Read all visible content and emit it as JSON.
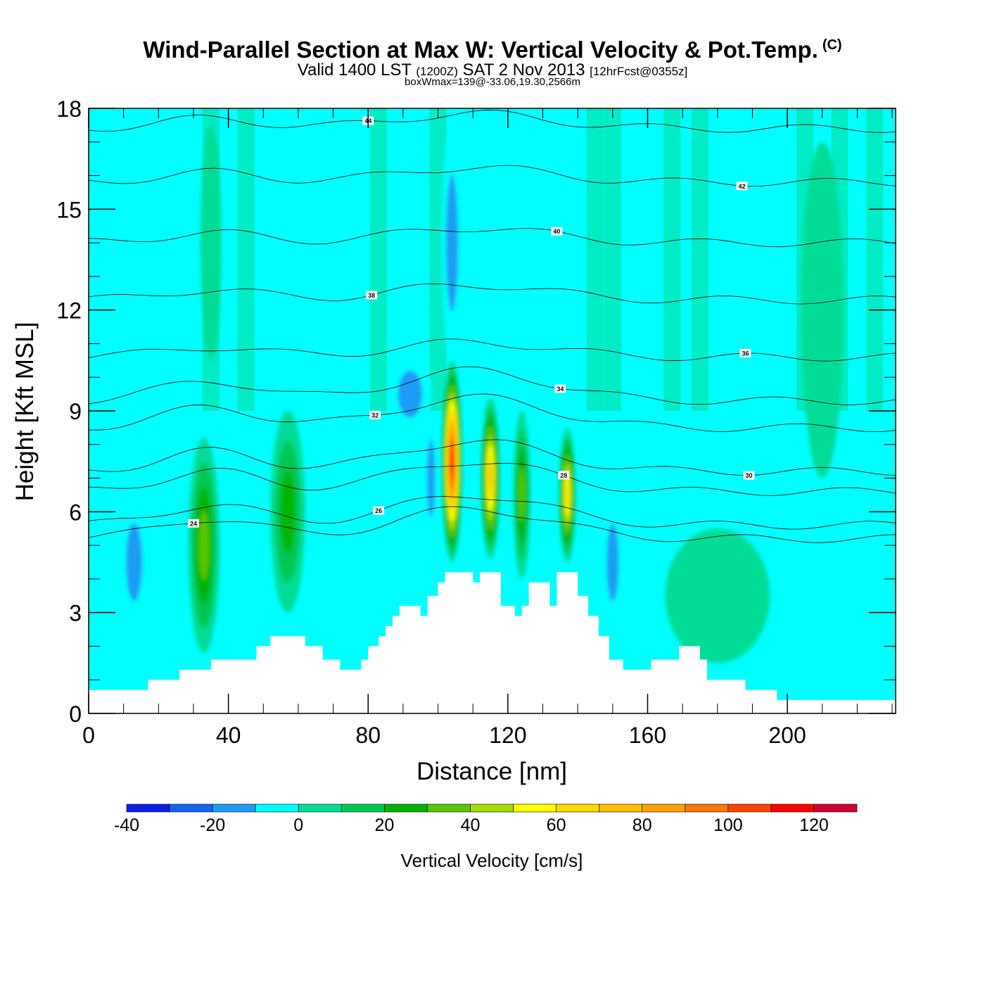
{
  "header": {
    "title": "Wind-Parallel Section at Max W: Vertical Velocity & Pot.Temp.",
    "copyright": "(C)",
    "valid_prefix": "Valid 1400 LST",
    "valid_utc": "(1200Z)",
    "valid_date": "SAT 2 Nov 2013",
    "forecast": "[12hrFcst@0355z]",
    "boxmax": "boxWmax=139@-33.06,19.30,2566m"
  },
  "colors": {
    "background_field": "#00ffff",
    "terrain": "#ffffff",
    "contour": "#000000"
  },
  "chart_data": {
    "type": "heatmap",
    "title": "Wind-Parallel Section at Max W: Vertical Velocity & Pot.Temp.",
    "xlabel": "Distance [nm]",
    "ylabel": "Height [Kft MSL]",
    "xlim": [
      0,
      231
    ],
    "ylim": [
      0,
      18
    ],
    "xticks": [
      "0",
      "40",
      "80",
      "120",
      "160",
      "200"
    ],
    "yticks": [
      "0",
      "3",
      "6",
      "9",
      "12",
      "15",
      "18"
    ],
    "colorbar": {
      "title": "Vertical Velocity [cm/s]",
      "bounds": [
        -40,
        -30,
        -20,
        -10,
        0,
        10,
        20,
        30,
        40,
        50,
        60,
        70,
        80,
        90,
        100,
        110,
        120,
        130
      ],
      "tick_labels": [
        "-40",
        "-20",
        "0",
        "20",
        "40",
        "60",
        "80",
        "100",
        "120"
      ],
      "colors": [
        "#0a1ee6",
        "#1464f0",
        "#1e9cf5",
        "#00ffff",
        "#00dc96",
        "#00c850",
        "#00b400",
        "#5ac800",
        "#a5dc00",
        "#ffff00",
        "#ffdc00",
        "#ffbe00",
        "#ffa000",
        "#ff7800",
        "#ff4600",
        "#ff0000",
        "#d20032"
      ]
    },
    "terrain_profile_kft": [
      [
        0,
        0.7
      ],
      [
        17,
        0.7
      ],
      [
        17,
        1.0
      ],
      [
        26,
        1.0
      ],
      [
        26,
        1.3
      ],
      [
        35,
        1.3
      ],
      [
        35,
        1.6
      ],
      [
        48,
        1.6
      ],
      [
        48,
        2.0
      ],
      [
        52,
        2.0
      ],
      [
        52,
        2.3
      ],
      [
        62,
        2.3
      ],
      [
        62,
        2.0
      ],
      [
        67,
        2.0
      ],
      [
        67,
        1.6
      ],
      [
        72,
        1.6
      ],
      [
        72,
        1.3
      ],
      [
        78,
        1.3
      ],
      [
        78,
        1.6
      ],
      [
        80,
        1.6
      ],
      [
        80,
        2.0
      ],
      [
        83,
        2.0
      ],
      [
        83,
        2.3
      ],
      [
        85,
        2.3
      ],
      [
        85,
        2.6
      ],
      [
        87,
        2.6
      ],
      [
        87,
        2.9
      ],
      [
        89,
        2.9
      ],
      [
        89,
        3.2
      ],
      [
        95,
        3.2
      ],
      [
        95,
        2.9
      ],
      [
        97,
        2.9
      ],
      [
        97,
        3.5
      ],
      [
        100,
        3.5
      ],
      [
        100,
        3.9
      ],
      [
        102,
        3.9
      ],
      [
        102,
        4.2
      ],
      [
        110,
        4.2
      ],
      [
        110,
        3.9
      ],
      [
        112,
        3.9
      ],
      [
        112,
        4.2
      ],
      [
        118,
        4.2
      ],
      [
        118,
        3.2
      ],
      [
        122,
        3.2
      ],
      [
        122,
        2.9
      ],
      [
        124,
        2.9
      ],
      [
        124,
        3.2
      ],
      [
        126,
        3.2
      ],
      [
        126,
        3.9
      ],
      [
        132,
        3.9
      ],
      [
        132,
        3.2
      ],
      [
        134,
        3.2
      ],
      [
        134,
        4.2
      ],
      [
        140,
        4.2
      ],
      [
        140,
        3.5
      ],
      [
        143,
        3.5
      ],
      [
        143,
        2.9
      ],
      [
        146,
        2.9
      ],
      [
        146,
        2.3
      ],
      [
        149,
        2.3
      ],
      [
        149,
        1.6
      ],
      [
        153,
        1.6
      ],
      [
        153,
        1.3
      ],
      [
        161,
        1.3
      ],
      [
        161,
        1.6
      ],
      [
        169,
        1.6
      ],
      [
        169,
        2.0
      ],
      [
        175,
        2.0
      ],
      [
        175,
        1.6
      ],
      [
        177,
        1.6
      ],
      [
        177,
        1.0
      ],
      [
        188,
        1.0
      ],
      [
        188,
        0.7
      ],
      [
        197,
        0.7
      ],
      [
        197,
        0.4
      ],
      [
        231,
        0.4
      ]
    ],
    "w_cells": [
      {
        "x": 33,
        "y": 5.0,
        "rx": 4.5,
        "ry": 3.2,
        "w": 45
      },
      {
        "x": 57,
        "y": 6.0,
        "rx": 5.0,
        "ry": 3.0,
        "w": 35
      },
      {
        "x": 104,
        "y": 7.5,
        "rx": 3.0,
        "ry": 3.0,
        "w": 120
      },
      {
        "x": 115,
        "y": 7.0,
        "rx": 2.8,
        "ry": 2.4,
        "w": 80
      },
      {
        "x": 124,
        "y": 6.5,
        "rx": 2.5,
        "ry": 2.5,
        "w": 40
      },
      {
        "x": 137,
        "y": 6.5,
        "rx": 2.5,
        "ry": 2.0,
        "w": 70
      },
      {
        "x": 92,
        "y": 9.5,
        "rx": 6.0,
        "ry": 1.2,
        "w": -20
      },
      {
        "x": 98,
        "y": 7.0,
        "rx": 2.0,
        "ry": 2.0,
        "w": -25
      },
      {
        "x": 104,
        "y": 14.0,
        "rx": 3.0,
        "ry": 3.5,
        "w": -20
      },
      {
        "x": 13,
        "y": 4.5,
        "rx": 4.0,
        "ry": 2.0,
        "w": -20
      },
      {
        "x": 150,
        "y": 4.5,
        "rx": 3.0,
        "ry": 2.0,
        "w": -20
      },
      {
        "x": 75,
        "y": 5.0,
        "rx": 4.0,
        "ry": 2.5,
        "w": -10
      },
      {
        "x": 35,
        "y": 14.0,
        "rx": 3.0,
        "ry": 3.5,
        "w": 10
      },
      {
        "x": 210,
        "y": 12.0,
        "rx": 6.0,
        "ry": 5.0,
        "w": 10
      },
      {
        "x": 180,
        "y": 3.5,
        "rx": 15.0,
        "ry": 2.0,
        "w": 10
      }
    ],
    "theta_contours": [
      {
        "label": "24",
        "base": 5.2
      },
      {
        "label": "26",
        "base": 5.6
      },
      {
        "label": "28",
        "base": 6.6
      },
      {
        "label": "30",
        "base": 7.2
      },
      {
        "label": "32",
        "base": 8.5
      },
      {
        "label": "34",
        "base": 9.3
      },
      {
        "label": "36",
        "base": 10.6
      },
      {
        "label": "38",
        "base": 12.3
      },
      {
        "label": "40",
        "base": 14.0
      },
      {
        "label": "42",
        "base": 15.8
      },
      {
        "label": "44",
        "base": 17.4
      }
    ]
  }
}
